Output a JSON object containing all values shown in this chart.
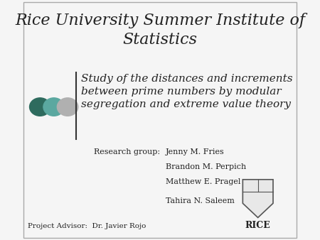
{
  "title": "Rice University Summer Institute of\nStatistics",
  "subtitle": "Study of the distances and increments\nbetween prime numbers by modular\nsegregation and extreme value theory",
  "research_group_label": "Research group:",
  "members": [
    "Jenny M. Fries",
    "Brandon M. Perpich",
    "Matthew E. Pragel",
    "Tahira N. Saleem"
  ],
  "advisor": "Project Advisor:  Dr. Javier Rojo",
  "dot_colors": [
    "#2e6b5e",
    "#5ba8a0",
    "#b0b0b0"
  ],
  "background_color": "#f5f5f5",
  "title_fontsize": 16,
  "subtitle_fontsize": 11,
  "text_color": "#222222",
  "line_color": "#333333"
}
